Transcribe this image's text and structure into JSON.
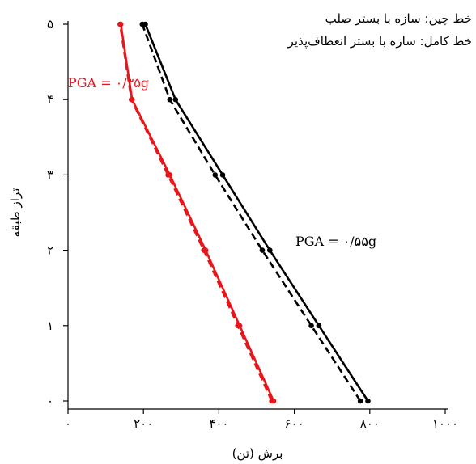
{
  "chart_data": {
    "type": "line",
    "title": "",
    "xlabel": "برش (تن)",
    "ylabel": "تراز طبقه",
    "xlim": [
      0,
      1000
    ],
    "ylim": [
      0,
      5
    ],
    "x_ticks": [
      0,
      200,
      400,
      600,
      800,
      1000
    ],
    "x_tick_labels": [
      "۰",
      "۲۰۰",
      "۴۰۰",
      "۶۰۰",
      "۸۰۰",
      "۱۰۰۰"
    ],
    "y_ticks": [
      0,
      1,
      2,
      3,
      4,
      5
    ],
    "y_tick_labels": [
      "۰",
      "۱",
      "۲",
      "۳",
      "۴",
      "۵"
    ],
    "grid": false,
    "legend": {
      "position": "top-right",
      "lines": [
        "خط چین: سازه با بستر صلب",
        "خط کامل: سازه با بستر انعطاف‌پذیر"
      ]
    },
    "annotations": [
      {
        "text": "PGA = ۰/۳۵g",
        "color": "#e8161b"
      },
      {
        "text": "PGA = ۰/۵۵g",
        "color": "#000000"
      }
    ],
    "series": [
      {
        "color": "#000000",
        "style": "solid",
        "x": [
          795,
          665,
          535,
          410,
          285,
          205
        ],
        "y": [
          0,
          1,
          2,
          3,
          4,
          5
        ]
      },
      {
        "color": "#000000",
        "style": "dashed",
        "x": [
          775,
          645,
          515,
          390,
          270,
          197
        ],
        "y": [
          0,
          1,
          2,
          3,
          4,
          5
        ]
      },
      {
        "color": "#e8161b",
        "style": "solid",
        "x": [
          545,
          455,
          365,
          270,
          170,
          140
        ],
        "y": [
          0,
          1,
          2,
          3,
          4,
          5
        ]
      },
      {
        "color": "#e8161b",
        "style": "dashed",
        "x": [
          540,
          450,
          360,
          265,
          168,
          138
        ],
        "y": [
          0,
          1,
          2,
          3,
          4,
          5
        ]
      }
    ]
  }
}
